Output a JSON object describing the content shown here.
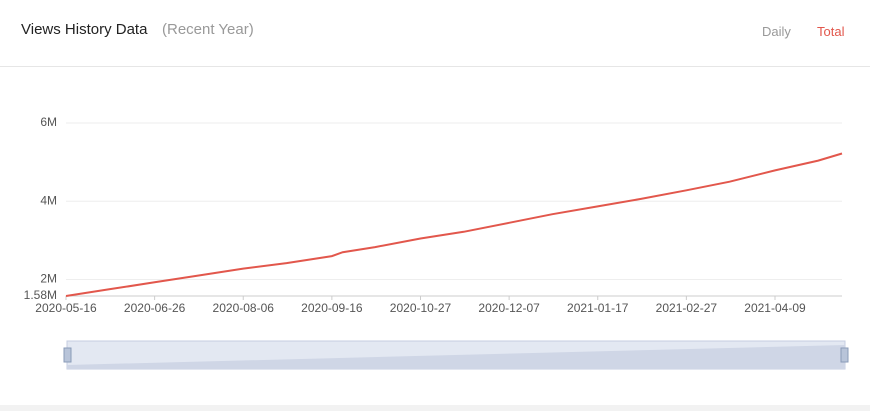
{
  "header": {
    "title": "Views History Data",
    "subtitle": "(Recent Year)",
    "tabs": [
      "Daily",
      "Total"
    ]
  },
  "chart_data": {
    "type": "line",
    "x": [
      "2020-05-16",
      "2020-06-05",
      "2020-06-26",
      "2020-07-16",
      "2020-08-06",
      "2020-08-26",
      "2020-09-16",
      "2020-09-21",
      "2020-10-06",
      "2020-10-27",
      "2020-11-16",
      "2020-12-07",
      "2020-12-27",
      "2021-01-17",
      "2021-02-06",
      "2021-02-27",
      "2021-03-19",
      "2021-04-09",
      "2021-04-29",
      "2021-05-10"
    ],
    "series": [
      {
        "name": "Total",
        "color": "#e2574c",
        "values": [
          1580000,
          1750000,
          1930000,
          2100000,
          2280000,
          2420000,
          2600000,
          2700000,
          2830000,
          3050000,
          3220000,
          3450000,
          3670000,
          3870000,
          4060000,
          4280000,
          4500000,
          4790000,
          5040000,
          5220000
        ]
      }
    ],
    "xlim": [
      "2020-05-16",
      "2021-05-10"
    ],
    "xticks": [
      "2020-05-16",
      "2020-06-26",
      "2020-08-06",
      "2020-09-16",
      "2020-10-27",
      "2020-12-07",
      "2021-01-17",
      "2021-02-27",
      "2021-04-09"
    ],
    "ylim": [
      1580000,
      6000000
    ],
    "yticks": [
      {
        "value": 1580000,
        "label": "1.58M"
      },
      {
        "value": 2000000,
        "label": "2M"
      },
      {
        "value": 4000000,
        "label": "4M"
      },
      {
        "value": 6000000,
        "label": "6M"
      }
    ],
    "grid": true
  }
}
